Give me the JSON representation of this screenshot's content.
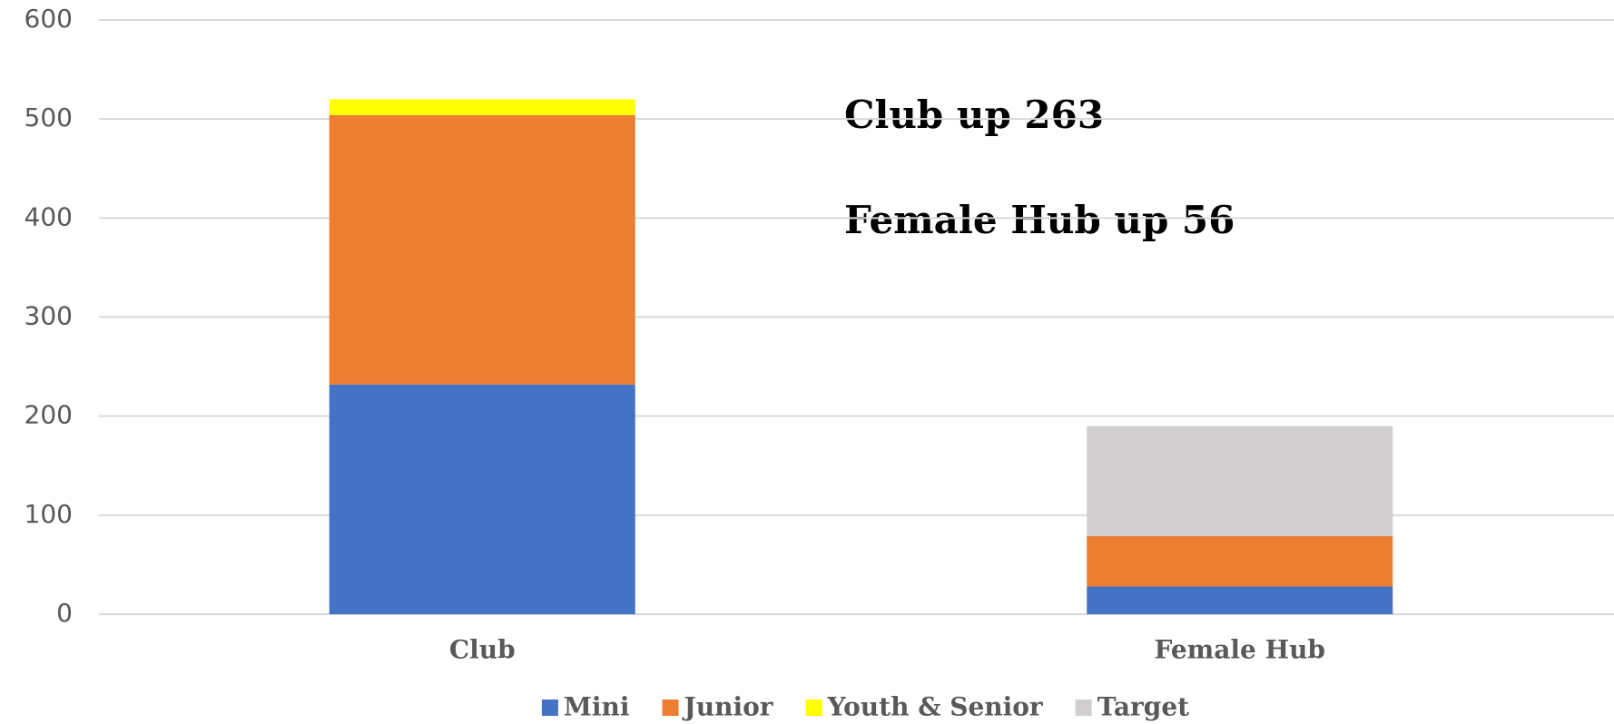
{
  "chart_data": {
    "type": "stacked_bar",
    "categories": [
      "Club",
      "Female Hub"
    ],
    "series": [
      {
        "name": "Mini",
        "color": "#4472c4",
        "values": [
          232,
          28
        ]
      },
      {
        "name": "Junior",
        "color": "#ed7d31",
        "values": [
          272,
          51
        ]
      },
      {
        "name": "Youth & Senior",
        "color": "#ffff00",
        "values": [
          16,
          0
        ]
      },
      {
        "name": "Target",
        "color": "#d0cece",
        "values": [
          0,
          111
        ]
      }
    ],
    "ylim": [
      0,
      600
    ],
    "yticks": [
      0,
      100,
      200,
      300,
      400,
      500,
      600
    ],
    "grid": true,
    "legend": "bottom",
    "annotations": [
      "Club up 263",
      "Female Hub up 56"
    ]
  }
}
